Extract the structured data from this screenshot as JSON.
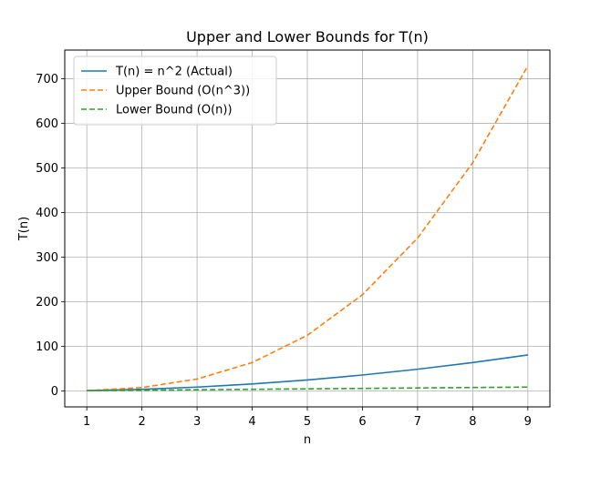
{
  "chart_data": {
    "type": "line",
    "title": "Upper and Lower Bounds for T(n)",
    "xlabel": "n",
    "ylabel": "T(n)",
    "x": [
      1,
      2,
      3,
      4,
      5,
      6,
      7,
      8,
      9
    ],
    "xlim": [
      0.6,
      9.4
    ],
    "ylim": [
      -35.4,
      764.4
    ],
    "xticks": [
      1,
      2,
      3,
      4,
      5,
      6,
      7,
      8,
      9
    ],
    "yticks": [
      0,
      100,
      200,
      300,
      400,
      500,
      600,
      700
    ],
    "grid": true,
    "legend_position": "top-left",
    "series": [
      {
        "name": "T(n) = n^2 (Actual)",
        "values": [
          1,
          4,
          9,
          16,
          25,
          36,
          49,
          64,
          81
        ],
        "color": "#1f77b4",
        "style": "solid"
      },
      {
        "name": "Upper Bound (O(n^3))",
        "values": [
          1,
          8,
          27,
          64,
          125,
          216,
          343,
          512,
          729
        ],
        "color": "#ff7f0e",
        "style": "dashed"
      },
      {
        "name": "Lower Bound (O(n))",
        "values": [
          1,
          2,
          3,
          4,
          5,
          6,
          7,
          8,
          9
        ],
        "color": "#2ca02c",
        "style": "dashed"
      }
    ]
  }
}
